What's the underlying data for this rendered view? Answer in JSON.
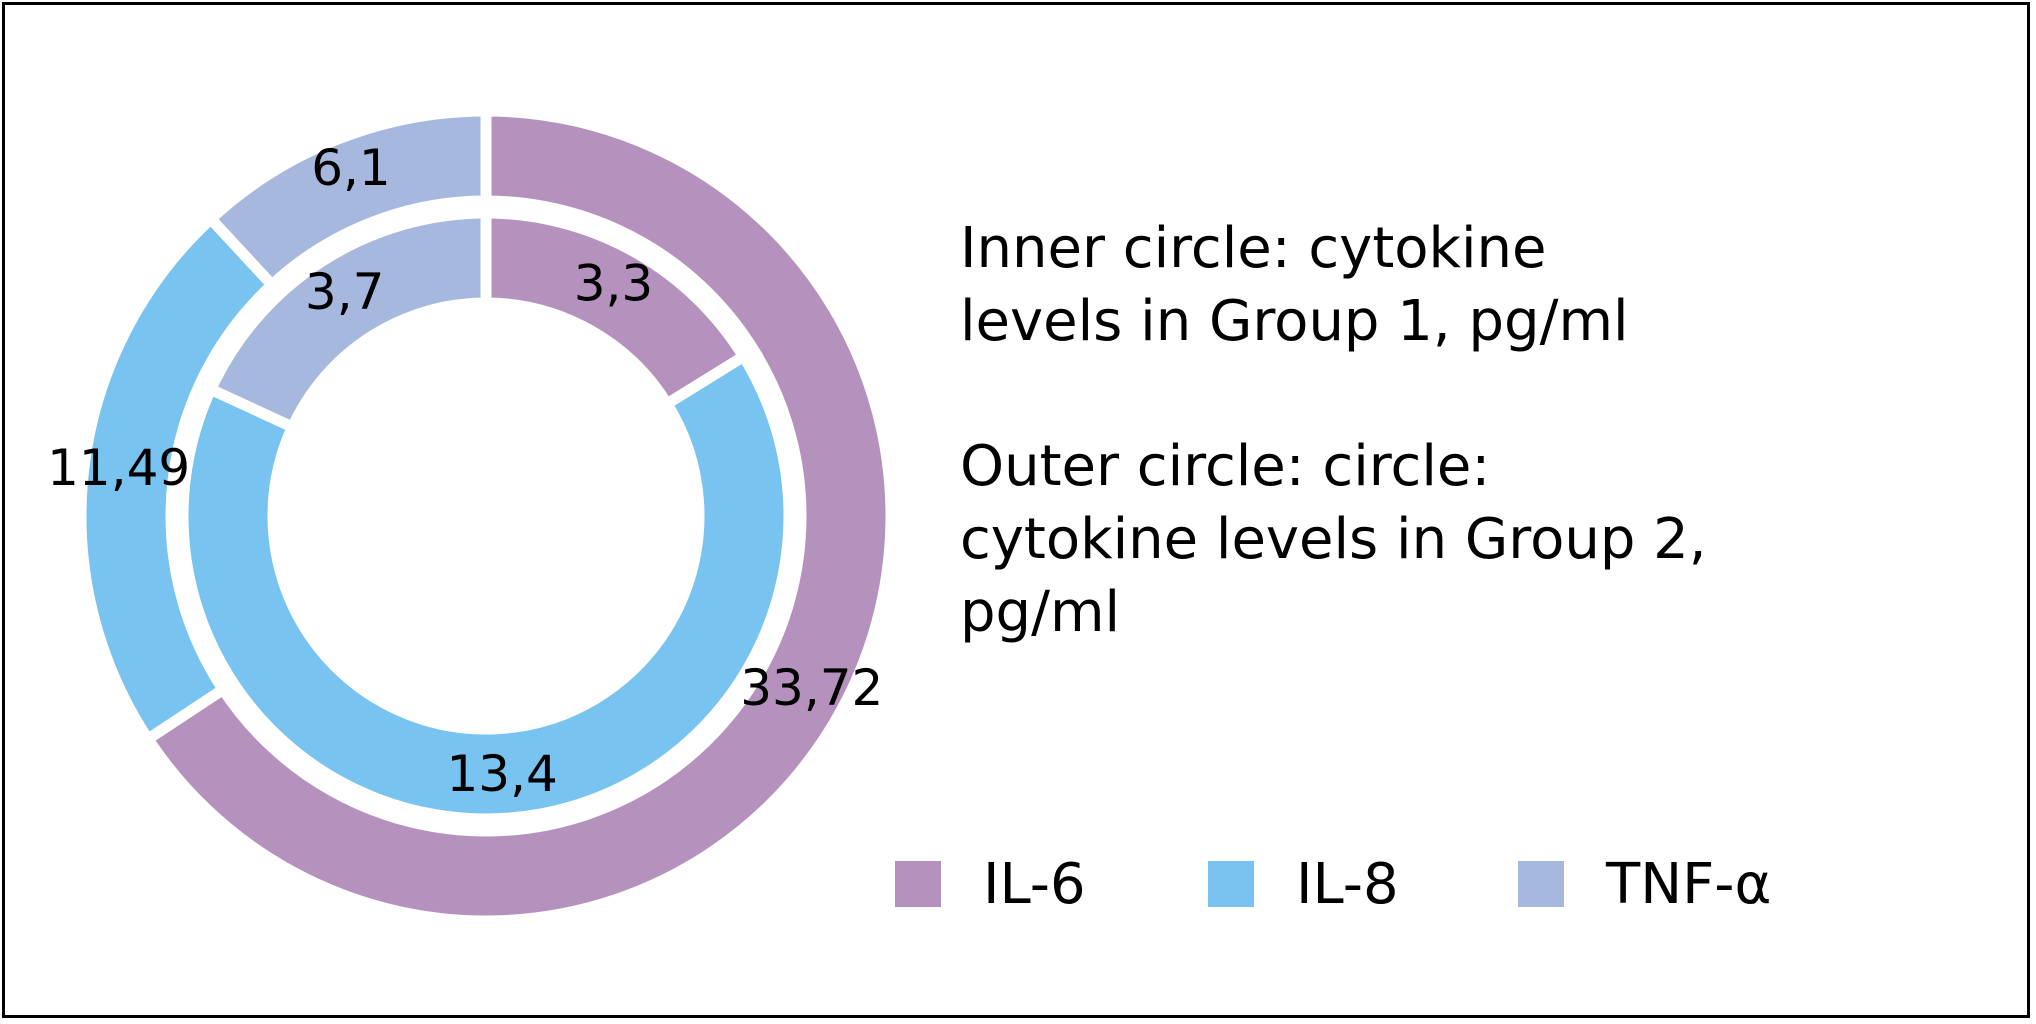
{
  "chart_data": {
    "type": "pie",
    "subtype": "double-donut",
    "categories": [
      "IL-6",
      "IL-8",
      "TNF-α"
    ],
    "colors": [
      "#b592bd",
      "#78c3ef",
      "#a7b8de"
    ],
    "series": [
      {
        "ring": "inner",
        "values": [
          3.3,
          13.4,
          3.7
        ],
        "labels": [
          "3,3",
          "13,4",
          "3,7"
        ]
      },
      {
        "ring": "outer",
        "values": [
          33.72,
          11.49,
          6.1
        ],
        "labels": [
          "33,72",
          "11,49",
          "6,1"
        ]
      }
    ],
    "notes": {
      "inner": "Inner circle: cytokine levels in Group 1, pg/ml",
      "outer": "Outer circle: circle: cytokine levels in Group 2, pg/ml"
    },
    "legend": {
      "position": "bottom-right",
      "items": [
        "IL-6",
        "IL-8",
        "TNF-α"
      ]
    }
  }
}
